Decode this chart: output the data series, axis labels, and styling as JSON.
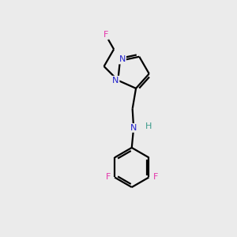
{
  "background_color": "#ebebeb",
  "bond_color": "#000000",
  "atom_colors": {
    "F": "#e535ab",
    "N": "#2222cc",
    "H": "#3a9a8a",
    "C": "#000000"
  },
  "figsize": [
    3.0,
    3.0
  ],
  "dpi": 100
}
